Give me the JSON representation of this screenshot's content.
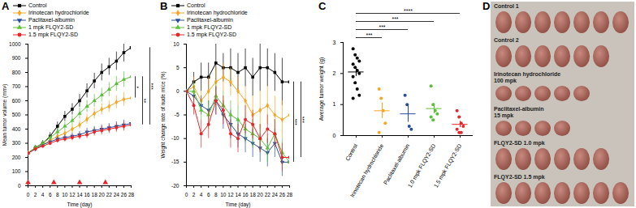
{
  "chart_data": [
    {
      "type": "line",
      "title": "A",
      "xlabel": "Time (day)",
      "ylabel": "Mean tumor volume (mm³)",
      "x": [
        0,
        2,
        4,
        6,
        8,
        10,
        12,
        14,
        16,
        18,
        20,
        22,
        24,
        26,
        28
      ],
      "xlim": [
        0,
        28
      ],
      "xticks": [
        0,
        2,
        4,
        6,
        8,
        10,
        12,
        14,
        16,
        18,
        20,
        22,
        24,
        26,
        28
      ],
      "ylim": [
        0,
        1000
      ],
      "yticks": [
        0,
        100,
        200,
        300,
        400,
        500,
        600,
        700,
        800,
        900,
        1000
      ],
      "legend": "top-left",
      "dosing_days": [
        0,
        7,
        14,
        21
      ],
      "series": [
        {
          "name": "Control",
          "color": "#000000",
          "marker": "square",
          "values": [
            230,
            270,
            300,
            350,
            420,
            490,
            540,
            600,
            670,
            740,
            800,
            840,
            880,
            940,
            975
          ],
          "errors": [
            10,
            15,
            20,
            25,
            30,
            35,
            40,
            45,
            50,
            55,
            60,
            60,
            65,
            65,
            70
          ]
        },
        {
          "name": "Irinotecan hydrochloride",
          "color": "#f5a623",
          "marker": "diamond",
          "values": [
            230,
            265,
            290,
            320,
            350,
            370,
            400,
            430,
            470,
            510,
            540,
            560,
            590,
            610,
            620
          ],
          "errors": [
            10,
            12,
            15,
            18,
            20,
            25,
            28,
            30,
            35,
            38,
            40,
            42,
            45,
            48,
            50
          ]
        },
        {
          "name": "Paclitaxel-albumin",
          "color": "#2a4d9b",
          "marker": "triangle-down",
          "values": [
            230,
            260,
            290,
            310,
            330,
            340,
            350,
            360,
            380,
            390,
            400,
            410,
            420,
            430,
            440
          ],
          "errors": [
            10,
            12,
            14,
            16,
            18,
            20,
            22,
            24,
            26,
            28,
            30,
            30,
            32,
            34,
            35
          ]
        },
        {
          "name": "1 mpk FLQY2-SD",
          "color": "#5cbf3a",
          "marker": "triangle",
          "values": [
            230,
            270,
            300,
            340,
            380,
            420,
            460,
            510,
            560,
            600,
            640,
            680,
            720,
            750,
            770
          ],
          "errors": [
            10,
            14,
            18,
            22,
            26,
            30,
            34,
            38,
            42,
            45,
            48,
            50,
            52,
            55,
            58
          ]
        },
        {
          "name": "1.5 mpk FLQY2-SD",
          "color": "#e8262a",
          "marker": "circle",
          "values": [
            230,
            260,
            280,
            300,
            320,
            330,
            340,
            350,
            360,
            380,
            390,
            400,
            410,
            420,
            430
          ],
          "errors": [
            10,
            12,
            14,
            16,
            18,
            20,
            22,
            24,
            26,
            28,
            30,
            30,
            32,
            34,
            35
          ]
        }
      ],
      "annotations": [
        {
          "text": "*",
          "between": [
            "1 mpk FLQY2-SD",
            "Irinotecan hydrochloride"
          ]
        },
        {
          "text": "**",
          "between": [
            "1 mpk FLQY2-SD",
            "1.5 mpk FLQY2-SD"
          ]
        },
        {
          "text": "***",
          "between": [
            "Control",
            "1.5 mpk FLQY2-SD"
          ]
        }
      ]
    },
    {
      "type": "line",
      "title": "B",
      "xlabel": "Time (day)",
      "ylabel": "Weight change rate of nude mice (%)",
      "x": [
        0,
        2,
        4,
        6,
        8,
        10,
        12,
        14,
        16,
        18,
        20,
        22,
        24,
        26,
        28
      ],
      "xlim": [
        0,
        28
      ],
      "xticks": [
        0,
        2,
        4,
        6,
        8,
        10,
        12,
        14,
        16,
        18,
        20,
        22,
        24,
        26,
        28
      ],
      "ylim": [
        -20,
        10
      ],
      "yticks": [
        -20,
        -15,
        -10,
        -5,
        0,
        5,
        10
      ],
      "legend": "top-left",
      "series": [
        {
          "name": "Control",
          "color": "#000000",
          "marker": "square",
          "values": [
            0,
            2,
            3,
            3,
            6,
            5,
            5,
            4,
            5,
            3,
            5,
            5,
            4,
            2,
            2
          ],
          "errors": [
            0,
            2,
            3,
            3,
            4,
            3,
            4,
            4,
            4,
            4,
            5,
            4,
            4,
            5,
            5
          ]
        },
        {
          "name": "Irinotecan hydrochloride",
          "color": "#f5a623",
          "marker": "diamond",
          "values": [
            0,
            1,
            -2,
            0,
            2,
            3,
            2,
            0,
            -2,
            -5,
            -4,
            -3,
            -5,
            -6,
            -5
          ],
          "errors": [
            0,
            2,
            2,
            3,
            3,
            3,
            3,
            3,
            3,
            4,
            4,
            4,
            4,
            4,
            4
          ]
        },
        {
          "name": "Paclitaxel-albumin",
          "color": "#2a4d9b",
          "marker": "triangle-down",
          "values": [
            0,
            -1,
            -3,
            -4,
            -2,
            -5,
            -7,
            -9,
            -10,
            -11,
            -12,
            -13,
            -11,
            -15,
            -15
          ],
          "errors": [
            0,
            2,
            2,
            2,
            3,
            3,
            3,
            3,
            3,
            3,
            3,
            3,
            3,
            3,
            3
          ]
        },
        {
          "name": "1 mpk FLQY2-SD",
          "color": "#5cbf3a",
          "marker": "triangle",
          "values": [
            0,
            0,
            -4,
            -5,
            -1,
            -3,
            -5,
            -6,
            -8,
            -9,
            -10,
            -12,
            -9,
            -13,
            -15
          ],
          "errors": [
            0,
            2,
            2,
            3,
            3,
            3,
            3,
            3,
            3,
            3,
            3,
            3,
            3,
            3,
            3
          ]
        },
        {
          "name": "1.5 mpk FLQY2-SD",
          "color": "#e8262a",
          "marker": "circle",
          "values": [
            0,
            -3,
            -9,
            -7,
            -2,
            -4,
            -9,
            -10,
            -6,
            -7,
            -10,
            -8,
            -9,
            -14,
            -14
          ],
          "errors": [
            0,
            2,
            3,
            3,
            3,
            3,
            3,
            3,
            3,
            3,
            3,
            3,
            3,
            3,
            3
          ]
        }
      ],
      "annotations": [
        {
          "text": "***",
          "between": [
            "Control",
            "Paclitaxel-albumin"
          ]
        },
        {
          "text": "***",
          "between": [
            "Control",
            "1.5 mpk FLQY2-SD"
          ]
        }
      ]
    },
    {
      "type": "strip",
      "title": "C",
      "ylabel": "Average tumor weight (g)",
      "categories": [
        "Control",
        "Irinotecan hydrochloride",
        "Paclitaxel-albumin",
        "1.0 mpk FLQY2-SD",
        "1.5 mpk FLQY2-SD"
      ],
      "colors": [
        "#000000",
        "#f5a623",
        "#2a4d9b",
        "#5cbf3a",
        "#e8262a"
      ],
      "values": [
        [
          2.8,
          2.6,
          2.5,
          2.4,
          2.3,
          2.2,
          2.1,
          2.0,
          1.9,
          1.7,
          1.5,
          1.3,
          1.2
        ],
        [
          1.5,
          1.2,
          0.8,
          0.4,
          0.1
        ],
        [
          1.3,
          1.0,
          0.3,
          0.2
        ],
        [
          1.6,
          1.0,
          0.8,
          0.7,
          0.6,
          0.5
        ],
        [
          0.8,
          0.6,
          0.4,
          0.3,
          0.2,
          0.1,
          0.1
        ]
      ],
      "mean": [
        2.05,
        0.8,
        0.7,
        0.87,
        0.36
      ],
      "sem": [
        0.14,
        0.25,
        0.27,
        0.16,
        0.1
      ],
      "ylim": [
        0,
        3
      ],
      "yticks": [
        0,
        1,
        2,
        3
      ],
      "annotations": [
        {
          "text": "***",
          "between": [
            "Control",
            "Irinotecan hydrochloride"
          ]
        },
        {
          "text": "***",
          "between": [
            "Control",
            "Paclitaxel-albumin"
          ]
        },
        {
          "text": "***",
          "between": [
            "Control",
            "1.0 mpk FLQY2-SD"
          ]
        },
        {
          "text": "****",
          "between": [
            "Control",
            "1.5 mpk FLQY2-SD"
          ]
        }
      ]
    }
  ],
  "photo": {
    "title": "D",
    "rows": [
      {
        "label": [
          "Control 1"
        ],
        "count": 7
      },
      {
        "label": [
          "Control 2"
        ],
        "count": 6
      },
      {
        "label": [
          "Irinotecan hydrochloride",
          "100 mpk"
        ],
        "count": 5
      },
      {
        "label": [
          "Paclitaxel-albumin",
          "15 mpk"
        ],
        "count": 4
      },
      {
        "label": [
          "FLQY2-SD 1.0 mpk"
        ],
        "count": 6
      },
      {
        "label": [
          "FLQY2-SD 1.5 mpk"
        ],
        "count": 7
      }
    ]
  }
}
